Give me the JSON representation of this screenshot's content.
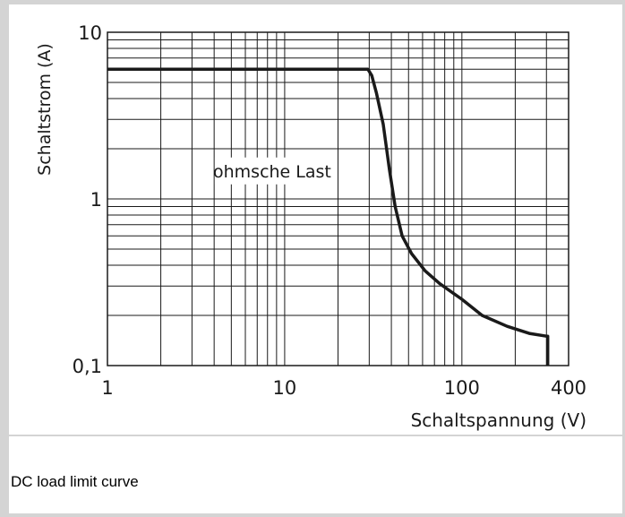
{
  "caption": "DC load limit curve",
  "chart_data": {
    "type": "line",
    "title": "",
    "xlabel": "Schaltspannung (V)",
    "ylabel": "Schaltstrom (A)",
    "xscale": "log",
    "yscale": "log",
    "xlim": [
      1,
      400
    ],
    "ylim": [
      0.1,
      10
    ],
    "grid": true,
    "x_tick_labels": [
      {
        "value": 1,
        "label": "1"
      },
      {
        "value": 10,
        "label": "10"
      },
      {
        "value": 100,
        "label": "100"
      },
      {
        "value": 400,
        "label": "400"
      }
    ],
    "y_tick_labels": [
      {
        "value": 0.1,
        "label": "0,1"
      },
      {
        "value": 1,
        "label": "1"
      },
      {
        "value": 10,
        "label": "10"
      }
    ],
    "annotations": [
      {
        "text": "ohmsche Last",
        "x": 8.5,
        "y": 1.35
      }
    ],
    "series": [
      {
        "color": "#1a1a1a",
        "points": [
          [
            1,
            6
          ],
          [
            29.5,
            6
          ],
          [
            31,
            5.5
          ],
          [
            33,
            4.3
          ],
          [
            36,
            2.8
          ],
          [
            39,
            1.5
          ],
          [
            42,
            0.9
          ],
          [
            46,
            0.6
          ],
          [
            52,
            0.47
          ],
          [
            62,
            0.37
          ],
          [
            75,
            0.31
          ],
          [
            100,
            0.25
          ],
          [
            130,
            0.2
          ],
          [
            180,
            0.172
          ],
          [
            240,
            0.156
          ],
          [
            300,
            0.15
          ],
          [
            305,
            0.15
          ],
          [
            305,
            0.1
          ]
        ]
      }
    ]
  }
}
